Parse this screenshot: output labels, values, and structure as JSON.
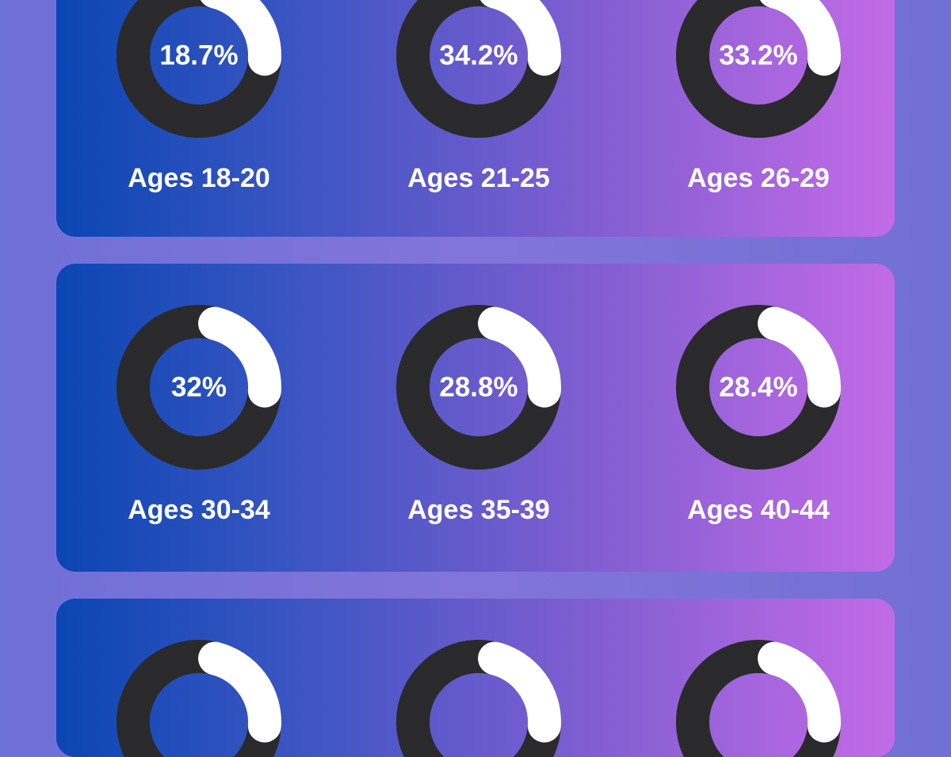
{
  "chart_data": {
    "type": "pie",
    "style": "donut",
    "colors": {
      "track": "#2a2a2c",
      "arc": "#ffffff",
      "text": "#ffffff",
      "panel_gradient_start": "#0a46b3",
      "panel_gradient_end": "#c26ae6",
      "background": "#7a6fd6"
    },
    "arc_fraction_shown": 0.22,
    "rows": [
      {
        "items": [
          {
            "label": "Ages 18-20",
            "value_text": "18.7%"
          },
          {
            "label": "Ages 21-25",
            "value_text": "34.2%"
          },
          {
            "label": "Ages 26-29",
            "value_text": "33.2%"
          }
        ]
      },
      {
        "items": [
          {
            "label": "Ages 30-34",
            "value_text": "32%"
          },
          {
            "label": "Ages 35-39",
            "value_text": "28.8%"
          },
          {
            "label": "Ages 40-44",
            "value_text": "28.4%"
          }
        ]
      },
      {
        "items": [
          {
            "label": "",
            "value_text": ""
          },
          {
            "label": "",
            "value_text": ""
          },
          {
            "label": "",
            "value_text": ""
          }
        ]
      }
    ]
  }
}
